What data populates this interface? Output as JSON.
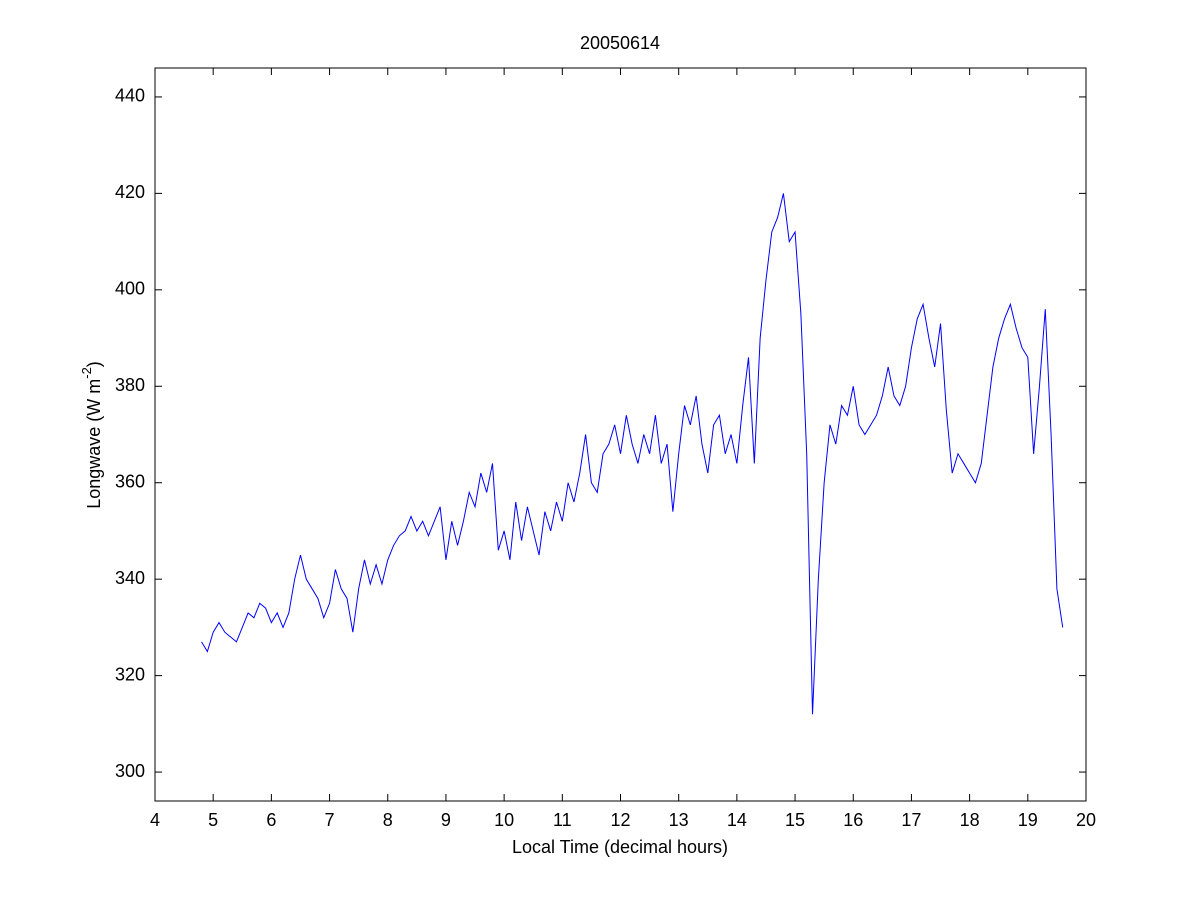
{
  "chart_data": {
    "type": "line",
    "title": "20050614",
    "xlabel": "Local Time (decimal hours)",
    "ylabel": [
      "Longwave (W m",
      "-2",
      ")"
    ],
    "xlim": [
      4,
      20
    ],
    "xticks": [
      4,
      5,
      6,
      7,
      8,
      9,
      10,
      11,
      12,
      13,
      14,
      15,
      16,
      17,
      18,
      19,
      20
    ],
    "ylim": [
      294,
      446
    ],
    "yticks": [
      300,
      320,
      340,
      360,
      380,
      400,
      420,
      440
    ],
    "x": [
      4.8,
      4.9,
      5.0,
      5.1,
      5.2,
      5.3,
      5.4,
      5.5,
      5.6,
      5.7,
      5.8,
      5.9,
      6.0,
      6.1,
      6.2,
      6.3,
      6.4,
      6.5,
      6.6,
      6.7,
      6.8,
      6.9,
      7.0,
      7.1,
      7.2,
      7.3,
      7.4,
      7.5,
      7.6,
      7.7,
      7.8,
      7.9,
      8.0,
      8.1,
      8.2,
      8.3,
      8.4,
      8.5,
      8.6,
      8.7,
      8.8,
      8.9,
      9.0,
      9.1,
      9.2,
      9.3,
      9.4,
      9.5,
      9.6,
      9.7,
      9.8,
      9.9,
      10.0,
      10.1,
      10.2,
      10.3,
      10.4,
      10.5,
      10.6,
      10.7,
      10.8,
      10.9,
      11.0,
      11.1,
      11.2,
      11.3,
      11.4,
      11.5,
      11.6,
      11.7,
      11.8,
      11.9,
      12.0,
      12.1,
      12.2,
      12.3,
      12.4,
      12.5,
      12.6,
      12.7,
      12.8,
      12.9,
      13.0,
      13.1,
      13.2,
      13.3,
      13.4,
      13.5,
      13.6,
      13.7,
      13.8,
      13.9,
      14.0,
      14.1,
      14.2,
      14.3,
      14.4,
      14.5,
      14.6,
      14.7,
      14.8,
      14.9,
      15.0,
      15.1,
      15.2,
      15.3,
      15.4,
      15.5,
      15.6,
      15.7,
      15.8,
      15.9,
      16.0,
      16.1,
      16.2,
      16.3,
      16.4,
      16.5,
      16.6,
      16.7,
      16.8,
      16.9,
      17.0,
      17.1,
      17.2,
      17.3,
      17.4,
      17.5,
      17.6,
      17.7,
      17.8,
      17.9,
      18.0,
      18.1,
      18.2,
      18.3,
      18.4,
      18.5,
      18.6,
      18.7,
      18.8,
      18.9,
      19.0,
      19.1,
      19.2,
      19.3,
      19.4,
      19.5,
      19.6
    ],
    "series": [
      {
        "color": "#0000ff",
        "values": [
          327,
          325,
          329,
          331,
          329,
          328,
          327,
          330,
          333,
          332,
          335,
          334,
          331,
          333,
          330,
          333,
          340,
          345,
          340,
          338,
          336,
          332,
          335,
          342,
          338,
          336,
          329,
          338,
          344,
          339,
          343,
          339,
          344,
          347,
          349,
          350,
          353,
          350,
          352,
          349,
          352,
          355,
          344,
          352,
          347,
          352,
          358,
          355,
          362,
          358,
          364,
          346,
          350,
          344,
          356,
          348,
          355,
          350,
          345,
          354,
          350,
          356,
          352,
          360,
          356,
          362,
          370,
          360,
          358,
          366,
          368,
          372,
          366,
          374,
          368,
          364,
          370,
          366,
          374,
          364,
          368,
          354,
          366,
          376,
          372,
          378,
          368,
          362,
          372,
          374,
          366,
          370,
          364,
          376,
          386,
          364,
          390,
          402,
          412,
          415,
          420,
          410,
          412,
          395,
          366,
          312,
          340,
          360,
          372,
          368,
          376,
          374,
          380,
          372,
          370,
          372,
          374,
          378,
          384,
          378,
          376,
          380,
          388,
          394,
          397,
          390,
          384,
          393,
          375,
          362,
          366,
          364,
          362,
          360,
          364,
          374,
          384,
          390,
          394,
          397,
          392,
          388,
          386,
          366,
          380,
          396,
          370,
          338,
          330
        ]
      }
    ]
  }
}
